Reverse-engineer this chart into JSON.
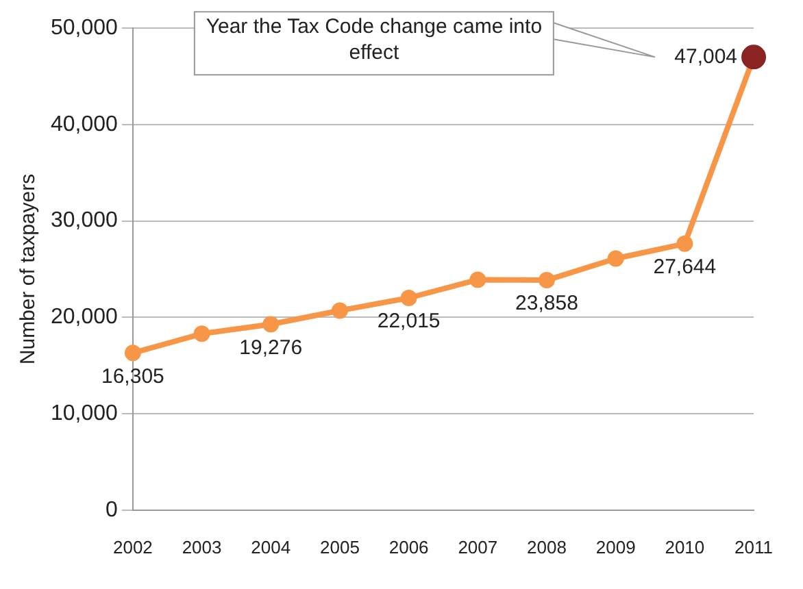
{
  "chart_data": {
    "type": "line",
    "ylabel": "Number of taxpayers",
    "categories": [
      "2002",
      "2003",
      "2004",
      "2005",
      "2006",
      "2007",
      "2008",
      "2009",
      "2010",
      "2011"
    ],
    "values": [
      16305,
      18300,
      19276,
      20700,
      22015,
      23900,
      23858,
      26100,
      27644,
      47004
    ],
    "value_labels": [
      "16,305",
      null,
      "19,276",
      null,
      "22,015",
      null,
      "23,858",
      null,
      "27,644",
      "47,004"
    ],
    "color": "#f79646",
    "colors": [
      "#f79646",
      "#f79646",
      "#f79646",
      "#f79646",
      "#f79646",
      "#f79646",
      "#f79646",
      "#f79646",
      "#f79646",
      "#8b2323"
    ],
    "marker": "circle",
    "ylim": [
      0,
      50000
    ],
    "yticks": [
      0,
      {
        "value": 10000,
        "label": "10,000"
      },
      {
        "value": 20000,
        "label": "20,000"
      },
      {
        "value": 30000,
        "label": "30,000"
      },
      {
        "value": 40000,
        "label": "40,000"
      },
      {
        "value": 50000,
        "label": "50,000"
      }
    ],
    "grid": "y",
    "annotations": [
      "Year the Tax Code change came into effect"
    ]
  }
}
